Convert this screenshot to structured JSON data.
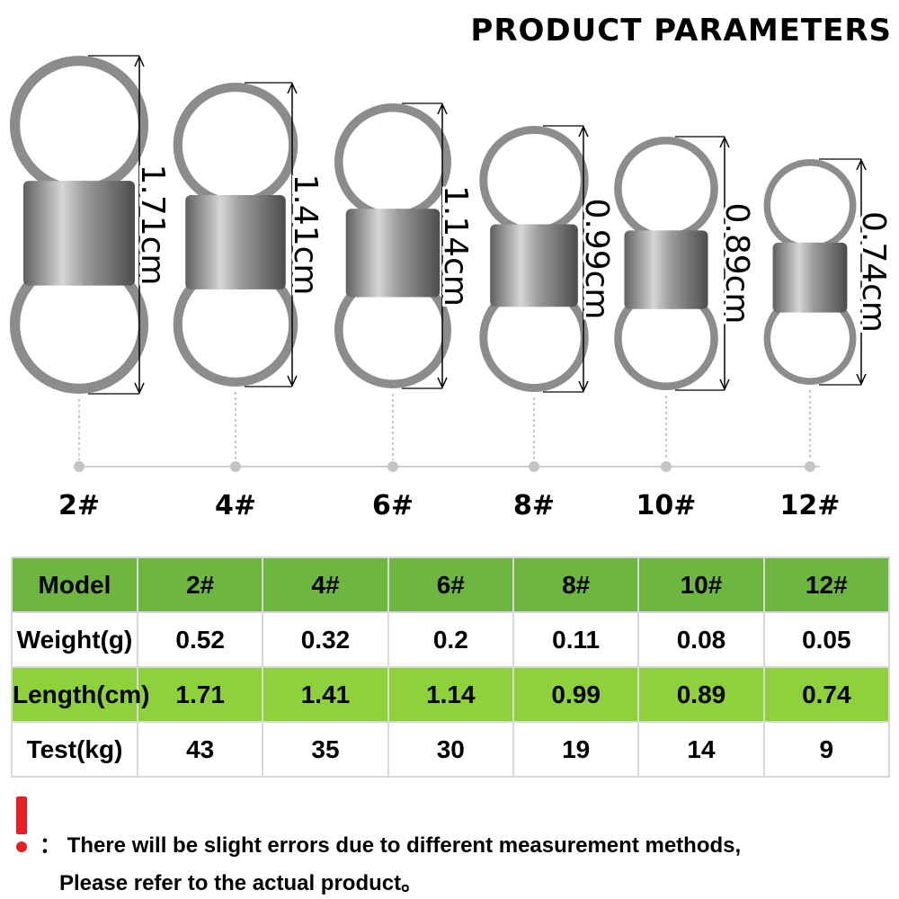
{
  "title": "PRODUCT PARAMETERS",
  "swivels": [
    {
      "model": "2#",
      "length_label": "1.71cm"
    },
    {
      "model": "4#",
      "length_label": "1.41cm"
    },
    {
      "model": "6#",
      "length_label": "1.14cm"
    },
    {
      "model": "8#",
      "length_label": "0.99cm"
    },
    {
      "model": "10#",
      "length_label": "0.89cm"
    },
    {
      "model": "12#",
      "length_label": "0.74cm"
    }
  ],
  "table": {
    "rows": [
      {
        "header": "Model",
        "values": [
          "2#",
          "4#",
          "6#",
          "8#",
          "10#",
          "12#"
        ]
      },
      {
        "header": "Weight(g)",
        "values": [
          "0.52",
          "0.32",
          "0.2",
          "0.11",
          "0.08",
          "0.05"
        ]
      },
      {
        "header": "Length(cm)",
        "values": [
          "1.71",
          "1.41",
          "1.14",
          "0.99",
          "0.89",
          "0.74"
        ]
      },
      {
        "header": "Test(kg)",
        "values": [
          "43",
          "35",
          "30",
          "19",
          "14",
          "9"
        ]
      }
    ]
  },
  "note": {
    "line1": "： There will be slight errors due to different measurement methods,",
    "line2": "Please refer to the actual product。"
  },
  "colors": {
    "green_dark": "#6db740",
    "green_light": "#8dd13b",
    "warning_red": "#ee1c25",
    "metal": "#8a8c8e"
  }
}
